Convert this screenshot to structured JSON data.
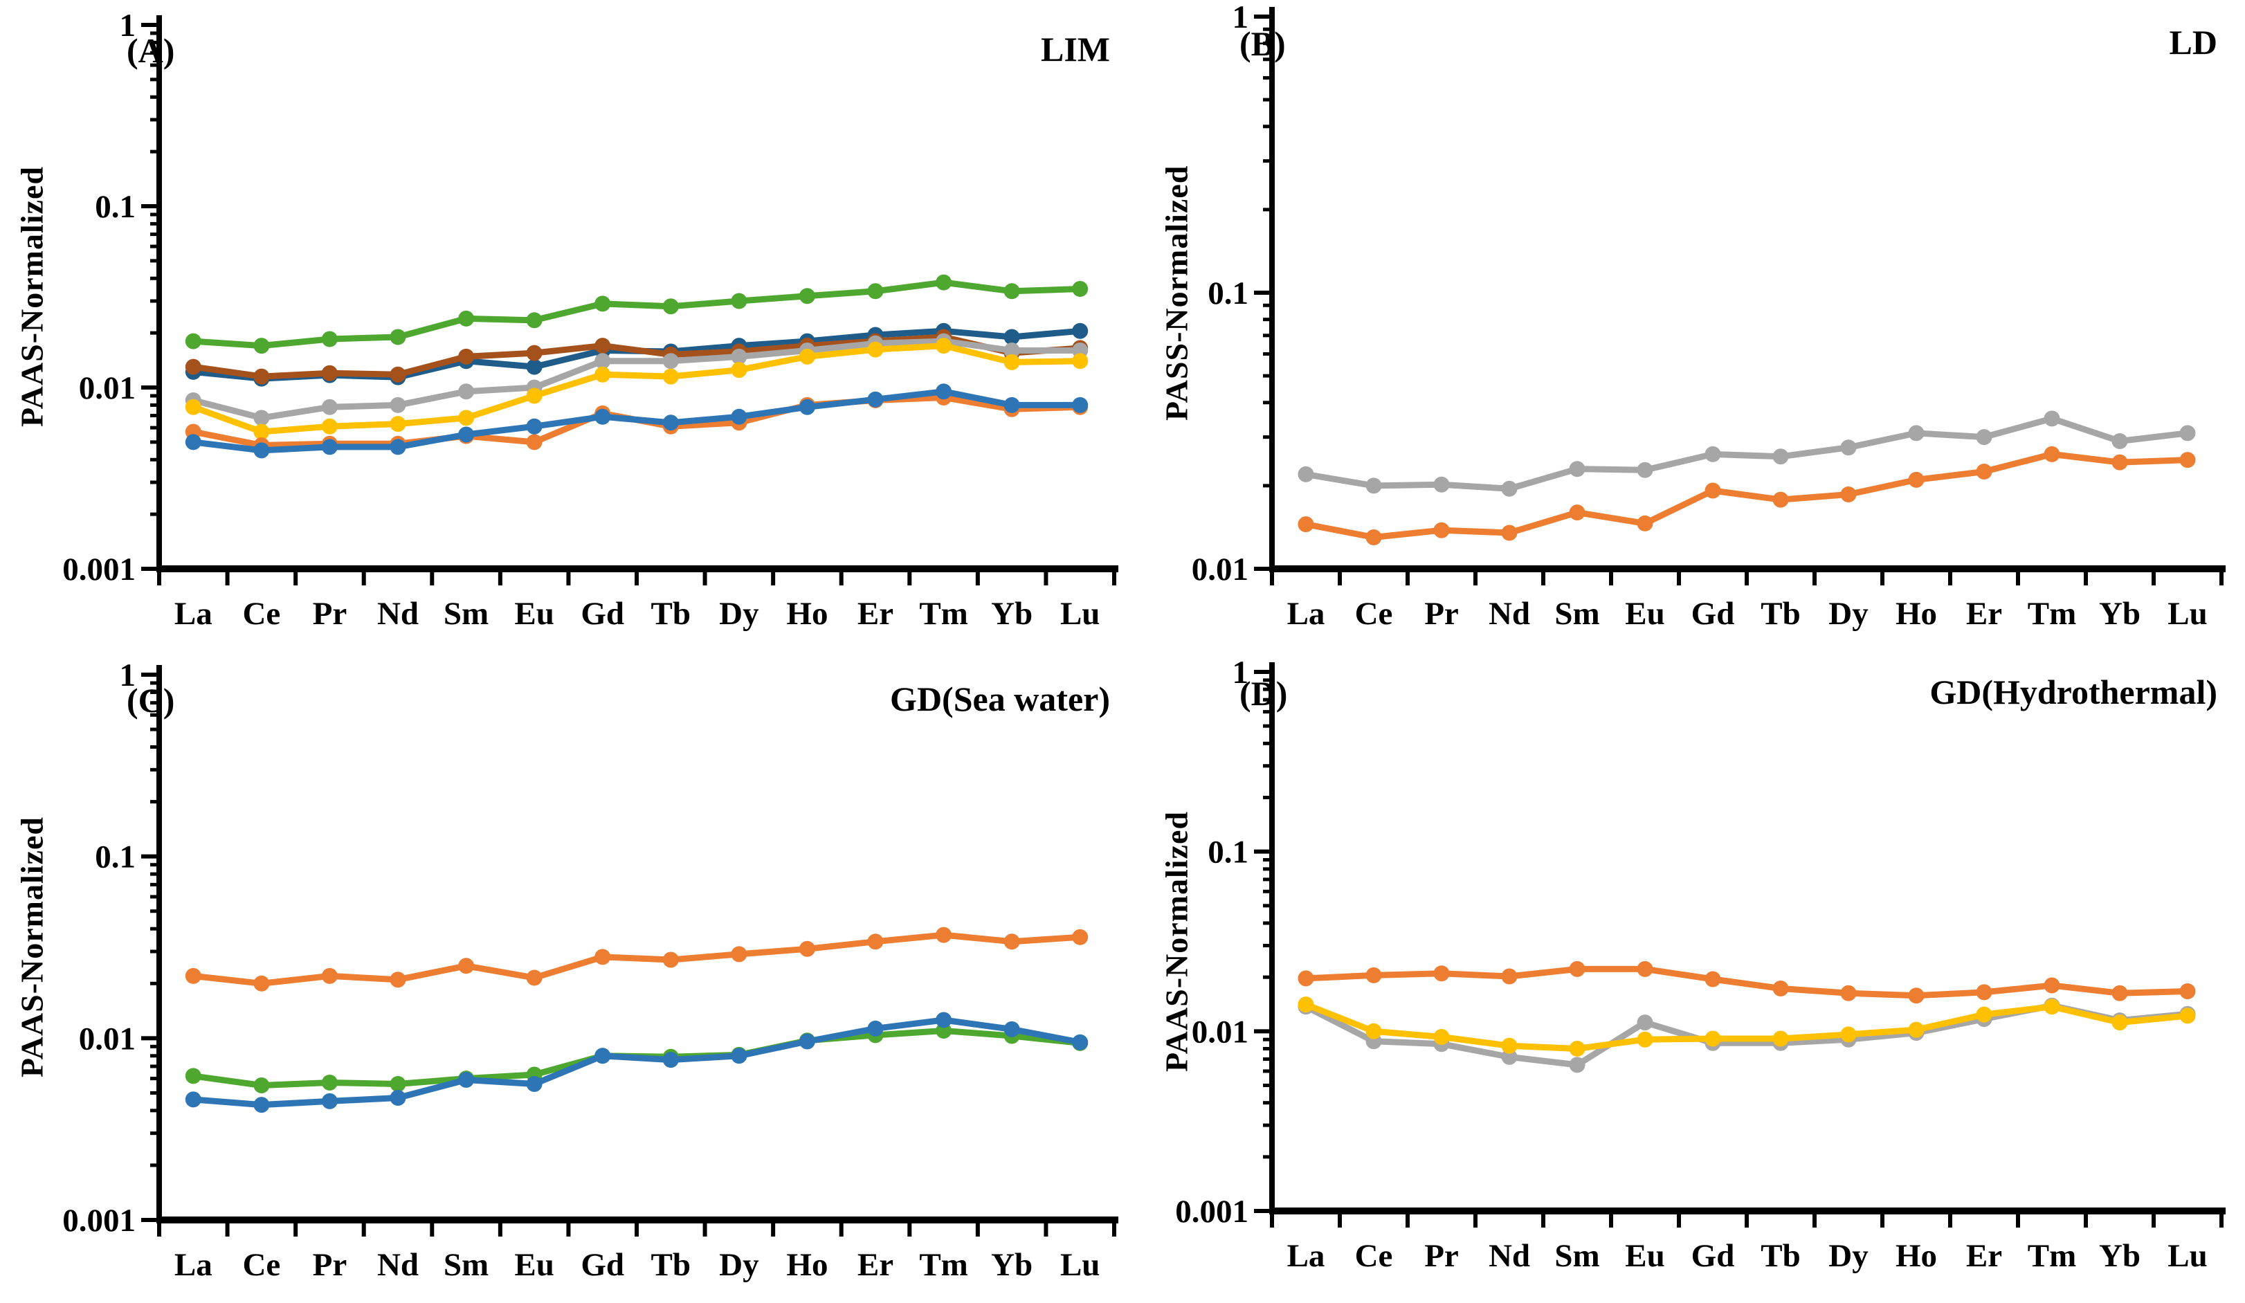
{
  "page": {
    "background": "#ffffff",
    "text_color": "#000000"
  },
  "categories": [
    "La",
    "Ce",
    "Pr",
    "Nd",
    "Sm",
    "Eu",
    "Gd",
    "Tb",
    "Dy",
    "Ho",
    "Er",
    "Tm",
    "Yb",
    "Lu"
  ],
  "chart_data": [
    {
      "type": "line",
      "panel": "A",
      "corner_label": "(A)",
      "title": "LIM",
      "ylabel": "PAAS-Normalized",
      "xlabel": "",
      "y_scale": "log",
      "ylim": [
        0.001,
        1
      ],
      "y_tick_labels": [
        "1",
        "0.1",
        "0.01",
        "0.001"
      ],
      "grid": "off",
      "legend": "none",
      "categories": [
        "La",
        "Ce",
        "Pr",
        "Nd",
        "Sm",
        "Eu",
        "Gd",
        "Tb",
        "Dy",
        "Ho",
        "Er",
        "Tm",
        "Yb",
        "Lu"
      ],
      "series": [
        {
          "name": "series_green",
          "color": "#4EA72E",
          "marker": "circle",
          "values": [
            0.018,
            0.017,
            0.0185,
            0.019,
            0.024,
            0.0235,
            0.029,
            0.028,
            0.03,
            0.032,
            0.034,
            0.038,
            0.034,
            0.035
          ]
        },
        {
          "name": "series_navy",
          "color": "#1F5C8A",
          "marker": "circle",
          "values": [
            0.0122,
            0.0112,
            0.0117,
            0.0114,
            0.014,
            0.013,
            0.016,
            0.0158,
            0.017,
            0.018,
            0.0195,
            0.0205,
            0.019,
            0.0205
          ]
        },
        {
          "name": "series_brown",
          "color": "#A5511B",
          "marker": "circle",
          "values": [
            0.013,
            0.0115,
            0.012,
            0.0118,
            0.0148,
            0.0155,
            0.017,
            0.0152,
            0.0158,
            0.017,
            0.018,
            0.019,
            0.0155,
            0.0165
          ]
        },
        {
          "name": "series_gray",
          "color": "#A6A6A6",
          "marker": "circle",
          "values": [
            0.0085,
            0.0068,
            0.0078,
            0.008,
            0.0095,
            0.01,
            0.014,
            0.014,
            0.0148,
            0.016,
            0.0175,
            0.018,
            0.016,
            0.016
          ]
        },
        {
          "name": "series_gold",
          "color": "#FFC000",
          "marker": "circle",
          "values": [
            0.0078,
            0.0057,
            0.0061,
            0.0063,
            0.0068,
            0.009,
            0.0118,
            0.0115,
            0.0125,
            0.0148,
            0.0162,
            0.017,
            0.0138,
            0.014
          ]
        },
        {
          "name": "series_orange",
          "color": "#ED7D31",
          "marker": "circle",
          "values": [
            0.0057,
            0.0048,
            0.0049,
            0.0049,
            0.0054,
            0.005,
            0.0072,
            0.0061,
            0.0064,
            0.008,
            0.0085,
            0.0088,
            0.0076,
            0.0078
          ]
        },
        {
          "name": "series_blue",
          "color": "#2E75B6",
          "marker": "circle",
          "values": [
            0.005,
            0.0045,
            0.0047,
            0.0047,
            0.0055,
            0.0061,
            0.0069,
            0.0064,
            0.0069,
            0.0078,
            0.0086,
            0.0095,
            0.008,
            0.008
          ]
        }
      ]
    },
    {
      "type": "line",
      "panel": "B",
      "corner_label": "(B)",
      "title": "LD",
      "ylabel": "PASS-Normalized",
      "xlabel": "",
      "y_scale": "log",
      "ylim": [
        0.01,
        1
      ],
      "y_tick_labels": [
        "1",
        "0.1",
        "0.01"
      ],
      "grid": "off",
      "legend": "none",
      "categories": [
        "La",
        "Ce",
        "Pr",
        "Nd",
        "Sm",
        "Eu",
        "Gd",
        "Tb",
        "Dy",
        "Ho",
        "Er",
        "Tm",
        "Yb",
        "Lu"
      ],
      "series": [
        {
          "name": "series_gray",
          "color": "#A6A6A6",
          "marker": "circle",
          "values": [
            0.022,
            0.02,
            0.0202,
            0.0195,
            0.023,
            0.0228,
            0.026,
            0.0255,
            0.0275,
            0.031,
            0.03,
            0.035,
            0.029,
            0.031
          ]
        },
        {
          "name": "series_orange",
          "color": "#ED7D31",
          "marker": "circle",
          "values": [
            0.0145,
            0.013,
            0.0138,
            0.0135,
            0.016,
            0.0146,
            0.0192,
            0.0178,
            0.0186,
            0.021,
            0.0225,
            0.026,
            0.0243,
            0.0248
          ]
        }
      ]
    },
    {
      "type": "line",
      "panel": "C",
      "corner_label": "(C)",
      "title": "GD(Sea water)",
      "ylabel": "PAAS-Normalized",
      "xlabel": "",
      "y_scale": "log",
      "ylim": [
        0.001,
        1
      ],
      "y_tick_labels": [
        "1",
        "0.1",
        "0.01",
        "0.001"
      ],
      "grid": "off",
      "legend": "none",
      "categories": [
        "La",
        "Ce",
        "Pr",
        "Nd",
        "Sm",
        "Eu",
        "Gd",
        "Tb",
        "Dy",
        "Ho",
        "Er",
        "Tm",
        "Yb",
        "Lu"
      ],
      "series": [
        {
          "name": "series_orange",
          "color": "#ED7D31",
          "marker": "circle",
          "values": [
            0.022,
            0.02,
            0.022,
            0.021,
            0.025,
            0.0215,
            0.028,
            0.027,
            0.029,
            0.031,
            0.034,
            0.037,
            0.034,
            0.036
          ]
        },
        {
          "name": "series_green",
          "color": "#4EA72E",
          "marker": "circle",
          "values": [
            0.0062,
            0.0055,
            0.0057,
            0.0056,
            0.006,
            0.0063,
            0.008,
            0.0079,
            0.0081,
            0.0097,
            0.0104,
            0.011,
            0.0103,
            0.0094
          ]
        },
        {
          "name": "series_blue",
          "color": "#2E75B6",
          "marker": "circle",
          "values": [
            0.0046,
            0.0043,
            0.0045,
            0.0047,
            0.0059,
            0.0056,
            0.008,
            0.0076,
            0.008,
            0.0096,
            0.0113,
            0.0126,
            0.0112,
            0.0095
          ]
        }
      ]
    },
    {
      "type": "line",
      "panel": "D",
      "corner_label": "(D)",
      "title": "GD(Hydrothermal)",
      "ylabel": "PAAS-Normalized",
      "xlabel": "",
      "y_scale": "log",
      "ylim": [
        0.001,
        1
      ],
      "y_tick_labels": [
        "1",
        "0.1",
        "0.01",
        "0.001"
      ],
      "grid": "off",
      "legend": "none",
      "categories": [
        "La",
        "Ce",
        "Pr",
        "Nd",
        "Sm",
        "Eu",
        "Gd",
        "Tb",
        "Dy",
        "Ho",
        "Er",
        "Tm",
        "Yb",
        "Lu"
      ],
      "series": [
        {
          "name": "series_orange",
          "color": "#ED7D31",
          "marker": "circle",
          "values": [
            0.0197,
            0.0205,
            0.021,
            0.0202,
            0.0222,
            0.0222,
            0.0195,
            0.0173,
            0.0163,
            0.0158,
            0.0165,
            0.018,
            0.0163,
            0.0167
          ]
        },
        {
          "name": "series_gray",
          "color": "#A6A6A6",
          "marker": "circle",
          "values": [
            0.0137,
            0.0088,
            0.0085,
            0.0072,
            0.0065,
            0.0112,
            0.0086,
            0.0086,
            0.009,
            0.0098,
            0.0117,
            0.0139,
            0.0115,
            0.0125
          ]
        },
        {
          "name": "series_gold",
          "color": "#FFC000",
          "marker": "circle",
          "values": [
            0.0141,
            0.01,
            0.0093,
            0.0083,
            0.008,
            0.009,
            0.0091,
            0.0091,
            0.0096,
            0.0102,
            0.0124,
            0.0137,
            0.0112,
            0.0122
          ]
        }
      ]
    }
  ]
}
